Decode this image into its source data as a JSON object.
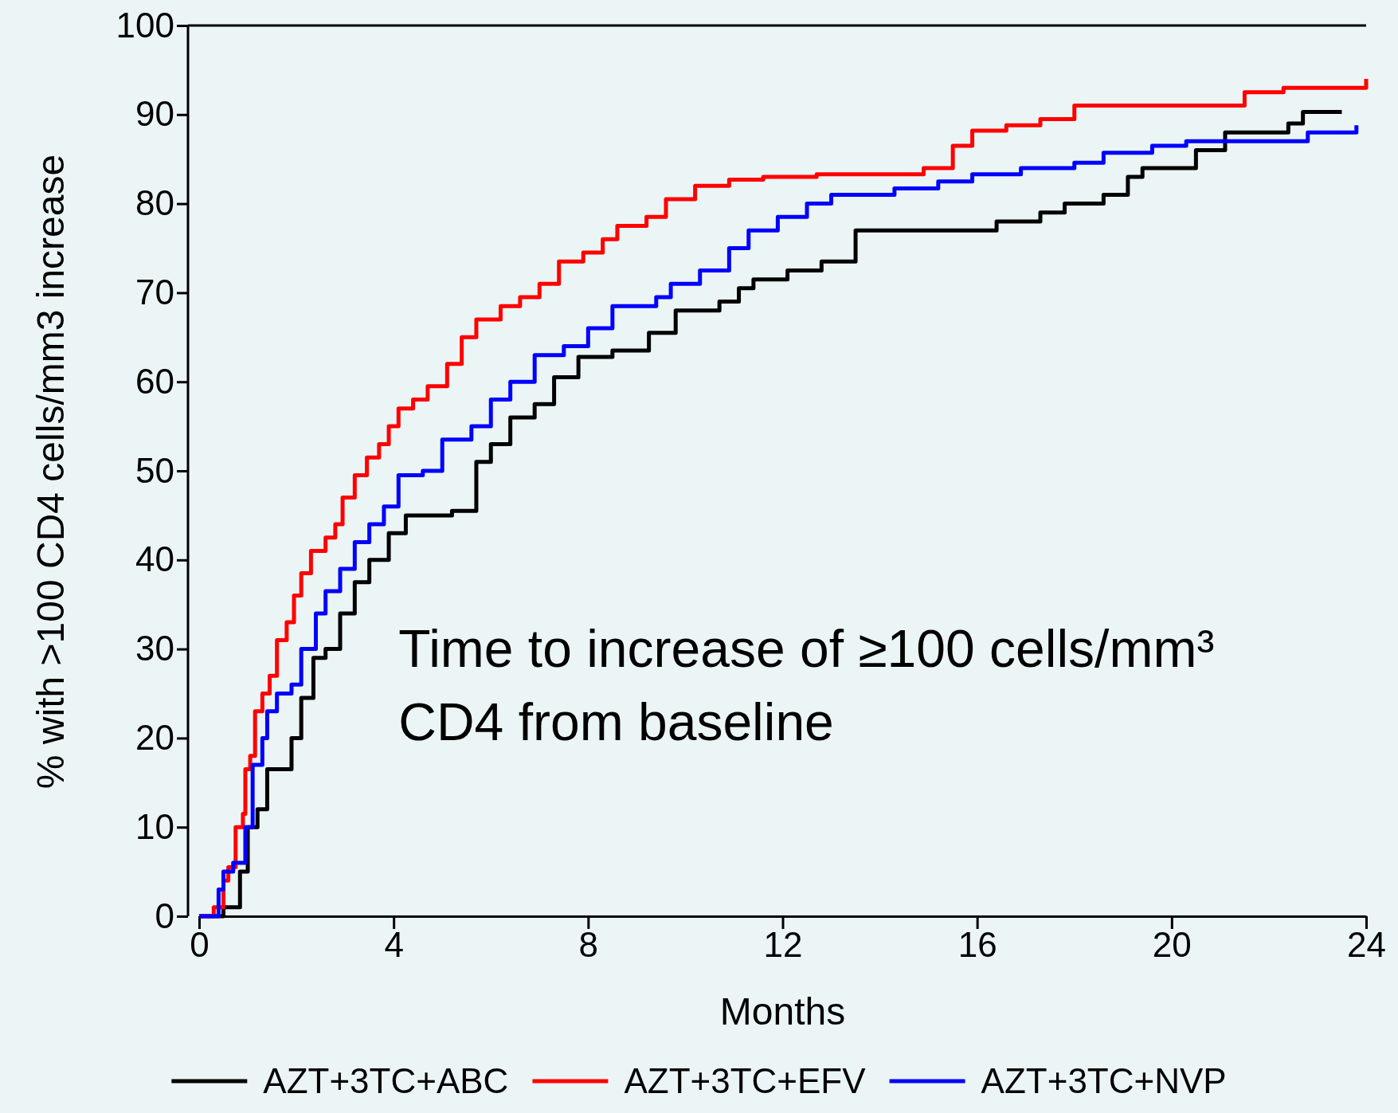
{
  "chart_data": {
    "type": "step",
    "xlabel": "Months",
    "ylabel": "% with >100 CD4 cells/mm3 increase",
    "annotations": [
      "Time to increase of ≥100 cells/mm³\nCD4 from baseline"
    ],
    "xlim": [
      0,
      24
    ],
    "ylim": [
      0,
      100
    ],
    "xticks": [
      0,
      4,
      8,
      12,
      16,
      20,
      24
    ],
    "yticks": [
      0,
      10,
      20,
      30,
      40,
      50,
      60,
      70,
      80,
      90,
      100
    ],
    "grid": false,
    "legend": "bottom",
    "marker": "none",
    "line_style": "solid",
    "series": [
      {
        "name": "AZT+3TC+ABC",
        "color": "#000000",
        "x": [
          0,
          0.45,
          0.5,
          0.84,
          1.0,
          1.2,
          1.4,
          1.9,
          2.1,
          2.35,
          2.6,
          2.9,
          3.2,
          3.5,
          3.9,
          4.25,
          5.2,
          5.7,
          6.0,
          6.4,
          6.9,
          7.3,
          7.8,
          8.5,
          9.25,
          9.8,
          10.7,
          11.1,
          11.4,
          12.1,
          12.8,
          13.5,
          16.4,
          17.3,
          17.8,
          18.6,
          19.1,
          19.4,
          20.5,
          21.1,
          22.4,
          22.7,
          23.5
        ],
        "values": [
          0,
          0,
          1,
          5,
          10,
          12,
          16.5,
          20,
          24.5,
          29,
          30,
          34,
          37.5,
          40,
          43,
          45,
          45.5,
          51,
          53,
          56,
          57.5,
          60.5,
          62.8,
          63.5,
          65.5,
          68,
          69,
          70.5,
          71.5,
          72.5,
          73.5,
          77,
          78,
          79,
          80,
          81,
          83,
          84,
          86,
          88,
          89,
          90.3,
          90.3
        ]
      },
      {
        "name": "AZT+3TC+EFV",
        "color": "#ff0000",
        "x": [
          0,
          0.3,
          0.5,
          0.6,
          0.75,
          0.9,
          0.95,
          1.05,
          1.15,
          1.3,
          1.45,
          1.6,
          1.8,
          1.95,
          2.1,
          2.3,
          2.6,
          2.8,
          2.95,
          3.2,
          3.45,
          3.7,
          3.9,
          4.1,
          4.4,
          4.7,
          5.1,
          5.4,
          5.7,
          6.2,
          6.6,
          7.0,
          7.4,
          7.9,
          8.3,
          8.6,
          9.2,
          9.6,
          10.2,
          10.9,
          11.6,
          12.7,
          14.9,
          15.5,
          15.9,
          16.6,
          17.3,
          18.0,
          21.5,
          22.3,
          23.9,
          24
        ],
        "values": [
          0,
          1,
          4,
          5.5,
          10,
          11.5,
          16.5,
          18,
          23,
          25,
          27,
          31,
          33,
          36,
          38.5,
          41,
          42.5,
          44,
          47,
          49.5,
          51.5,
          53,
          55,
          57,
          58,
          59.5,
          62,
          65,
          67,
          68.5,
          69.5,
          71,
          73.5,
          74.5,
          76,
          77.5,
          78.5,
          80.5,
          82,
          82.7,
          83,
          83.3,
          84,
          86.5,
          88.2,
          88.8,
          89.5,
          91,
          92.5,
          93,
          93,
          94
        ]
      },
      {
        "name": "AZT+3TC+NVP",
        "color": "#0000ff",
        "x": [
          0,
          0.4,
          0.5,
          0.7,
          0.95,
          1.1,
          1.3,
          1.4,
          1.6,
          1.9,
          2.1,
          2.4,
          2.6,
          2.9,
          3.2,
          3.5,
          3.8,
          4.1,
          4.6,
          5.0,
          5.6,
          6.0,
          6.4,
          6.9,
          7.5,
          8.0,
          8.5,
          9.4,
          9.7,
          10.3,
          10.9,
          11.3,
          11.9,
          12.5,
          13.0,
          14.3,
          15.2,
          15.9,
          16.9,
          18.0,
          18.6,
          19.6,
          20.3,
          22.8,
          23.8
        ],
        "values": [
          0,
          3,
          5,
          6,
          10,
          17,
          20,
          23,
          25,
          26,
          30,
          34,
          36.5,
          39,
          42,
          44,
          46,
          49.5,
          50,
          53.5,
          55,
          58,
          60,
          63,
          64,
          66,
          68.5,
          69.5,
          71,
          72.5,
          75,
          77,
          78.5,
          80,
          81,
          81.7,
          82.5,
          83.3,
          84,
          84.6,
          85.7,
          86.5,
          87,
          88,
          88.8
        ]
      }
    ]
  }
}
